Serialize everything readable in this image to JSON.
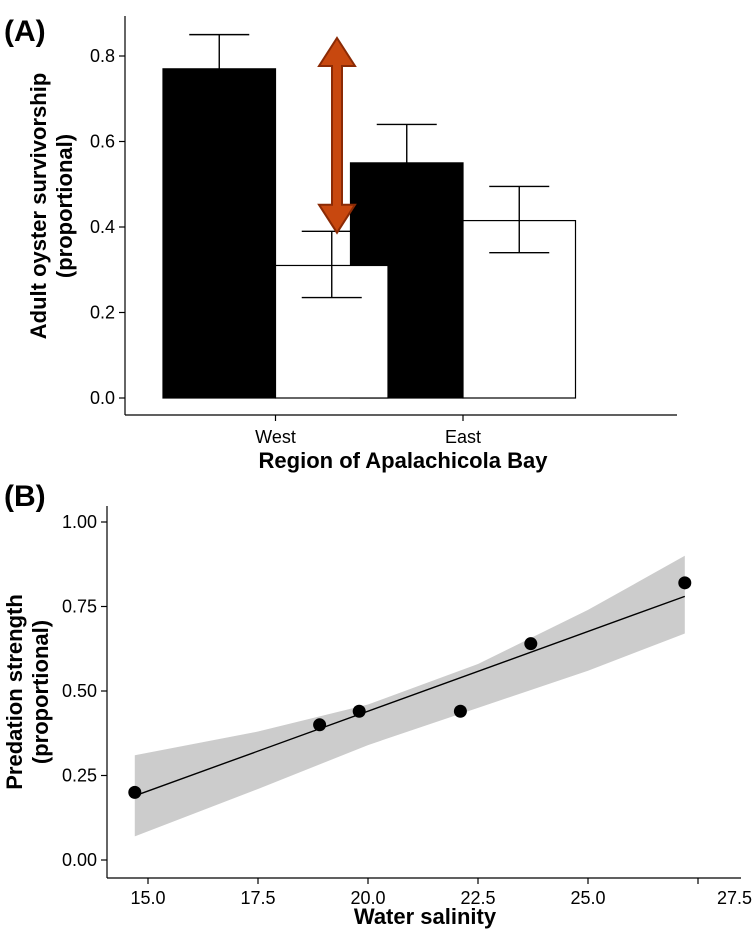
{
  "chart_data": [
    {
      "panel_label": "(A)",
      "type": "bar",
      "categories": [
        "West",
        "East"
      ],
      "xlabel": "Region of Apalachicola Bay",
      "ylabel_line1": "Adult oyster survivorship",
      "ylabel_line2": "(proportional)",
      "ylim": [
        0,
        0.89
      ],
      "yticks": [
        "0.0",
        "0.2",
        "0.4",
        "0.6",
        "0.8"
      ],
      "grid": false,
      "series": [
        {
          "fill": "#000000",
          "values": [
            0.77,
            0.55
          ],
          "error_upper": [
            0.85,
            0.64
          ],
          "error_lower": [
            0.77,
            0.55
          ]
        },
        {
          "fill": "#ffffff",
          "values": [
            0.31,
            0.415
          ],
          "error_upper": [
            0.39,
            0.495
          ],
          "error_lower": [
            0.235,
            0.34
          ]
        }
      ],
      "annotation": {
        "type": "double-arrow",
        "category": "West",
        "from_value": 0.8,
        "to_value": 0.41,
        "color": "#c8480f",
        "edge_color": "#8b2a05"
      }
    },
    {
      "panel_label": "(B)",
      "type": "scatter",
      "xlabel": "Water salinity",
      "ylabel_line1": "Predation strength",
      "ylabel_line2": "(proportional)",
      "xlim": [
        14.5,
        27.5
      ],
      "ylim": [
        0,
        1.0
      ],
      "xticks": [
        "15.0",
        "17.5",
        "20.0",
        "22.5",
        "25.0",
        "27.5"
      ],
      "yticks": [
        "0.00",
        "0.25",
        "0.50",
        "0.75",
        "1.00"
      ],
      "grid": false,
      "points": [
        {
          "x": 14.7,
          "y": 0.2
        },
        {
          "x": 18.9,
          "y": 0.4
        },
        {
          "x": 19.8,
          "y": 0.44
        },
        {
          "x": 22.1,
          "y": 0.44
        },
        {
          "x": 23.7,
          "y": 0.64
        },
        {
          "x": 27.2,
          "y": 0.82
        }
      ],
      "fit_line": {
        "x": [
          14.7,
          27.2
        ],
        "y": [
          0.19,
          0.78
        ]
      },
      "confidence_band": {
        "x": [
          14.7,
          17.5,
          20.0,
          22.5,
          25.0,
          27.2
        ],
        "lower": [
          0.07,
          0.21,
          0.34,
          0.45,
          0.56,
          0.67
        ],
        "upper": [
          0.31,
          0.38,
          0.46,
          0.58,
          0.74,
          0.9
        ]
      },
      "point_color": "#000000",
      "line_color": "#000000",
      "band_color": "#cccccc"
    }
  ]
}
